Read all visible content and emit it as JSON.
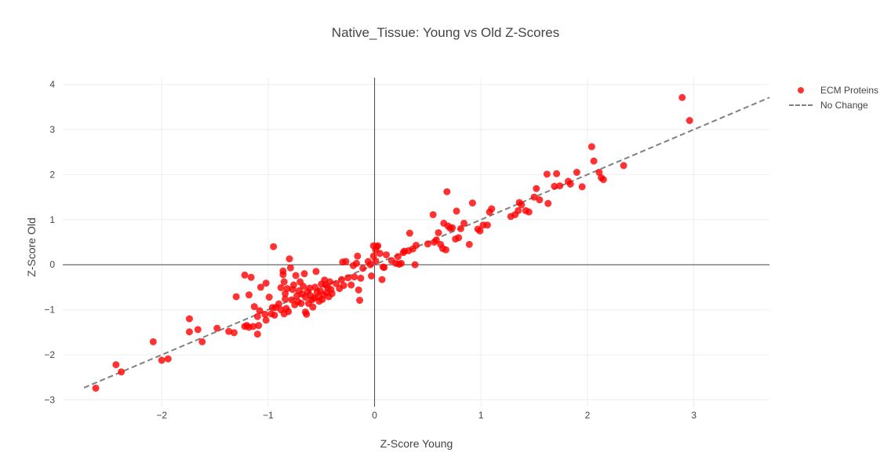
{
  "chart_data": {
    "type": "scatter",
    "title": "Native_Tissue: Young vs Old Z-Scores",
    "xlabel": "Z-Score Young",
    "ylabel": "Z-Score Old",
    "xlim": [
      -2.93,
      3.71
    ],
    "ylim": [
      -3.15,
      4.15
    ],
    "xticks": [
      -2,
      -1,
      0,
      1,
      2,
      3
    ],
    "yticks": [
      -3,
      -2,
      -1,
      0,
      1,
      2,
      3,
      4
    ],
    "xtick_labels": [
      "−2",
      "−1",
      "0",
      "1",
      "2",
      "3"
    ],
    "ytick_labels": [
      "−3",
      "−2",
      "−1",
      "0",
      "1",
      "2",
      "3",
      "4"
    ],
    "grid": true,
    "legend_position": "top-right",
    "series": [
      {
        "name": "ECM Proteins",
        "type": "scatter",
        "color": "#ff0000",
        "points": [
          [
            -2.62,
            -2.74
          ],
          [
            -2.43,
            -2.22
          ],
          [
            -2.38,
            -2.38
          ],
          [
            -2.08,
            -1.71
          ],
          [
            -2.0,
            -2.12
          ],
          [
            -1.94,
            -2.09
          ],
          [
            -1.74,
            -1.2
          ],
          [
            -1.74,
            -1.49
          ],
          [
            -1.66,
            -1.44
          ],
          [
            -1.62,
            -1.71
          ],
          [
            -1.48,
            -1.41
          ],
          [
            -1.37,
            -1.48
          ],
          [
            -1.32,
            -1.51
          ],
          [
            -1.3,
            -0.71
          ],
          [
            -1.22,
            -1.37
          ],
          [
            -1.22,
            -0.23
          ],
          [
            -1.2,
            -1.35
          ],
          [
            -1.18,
            -1.39
          ],
          [
            -1.18,
            -0.67
          ],
          [
            -1.16,
            -0.28
          ],
          [
            -1.14,
            -1.37
          ],
          [
            -1.13,
            -0.93
          ],
          [
            -1.1,
            -1.54
          ],
          [
            -1.1,
            -1.15
          ],
          [
            -1.09,
            -1.35
          ],
          [
            -1.08,
            -1.02
          ],
          [
            -1.07,
            -0.5
          ],
          [
            -1.03,
            -1.1
          ],
          [
            -1.02,
            -0.41
          ],
          [
            -1.02,
            -1.23
          ],
          [
            -0.99,
            -0.72
          ],
          [
            -0.97,
            -1.09
          ],
          [
            -0.96,
            -0.95
          ],
          [
            -0.95,
            0.4
          ],
          [
            -0.94,
            -1.12
          ],
          [
            -0.93,
            -0.95
          ],
          [
            -0.9,
            -0.87
          ],
          [
            -0.88,
            -0.51
          ],
          [
            -0.88,
            -1.0
          ],
          [
            -0.86,
            -0.14
          ],
          [
            -0.86,
            -0.22
          ],
          [
            -0.85,
            -0.38
          ],
          [
            -0.85,
            -1.09
          ],
          [
            -0.84,
            -0.64
          ],
          [
            -0.84,
            -0.76
          ],
          [
            -0.83,
            -0.97
          ],
          [
            -0.82,
            -0.53
          ],
          [
            -0.81,
            -1.04
          ],
          [
            -0.8,
            0.13
          ],
          [
            -0.79,
            -0.07
          ],
          [
            -0.78,
            -0.78
          ],
          [
            -0.77,
            -0.55
          ],
          [
            -0.76,
            -0.45
          ],
          [
            -0.75,
            -0.89
          ],
          [
            -0.74,
            -0.24
          ],
          [
            -0.73,
            -0.69
          ],
          [
            -0.72,
            -0.82
          ],
          [
            -0.71,
            -0.58
          ],
          [
            -0.7,
            -0.38
          ],
          [
            -0.69,
            -0.86
          ],
          [
            -0.68,
            -0.65
          ],
          [
            -0.67,
            -0.48
          ],
          [
            -0.66,
            -0.2
          ],
          [
            -0.65,
            -0.72
          ],
          [
            -0.65,
            -1.05
          ],
          [
            -0.64,
            -1.1
          ],
          [
            -0.63,
            -0.6
          ],
          [
            -0.62,
            -0.86
          ],
          [
            -0.61,
            -0.52
          ],
          [
            -0.6,
            -0.69
          ],
          [
            -0.59,
            -0.78
          ],
          [
            -0.58,
            -0.94
          ],
          [
            -0.57,
            -0.74
          ],
          [
            -0.56,
            -0.5
          ],
          [
            -0.55,
            -0.15
          ],
          [
            -0.54,
            -0.61
          ],
          [
            -0.53,
            -0.72
          ],
          [
            -0.52,
            -0.81
          ],
          [
            -0.51,
            -0.58
          ],
          [
            -0.5,
            -0.43
          ],
          [
            -0.49,
            -0.77
          ],
          [
            -0.48,
            -0.67
          ],
          [
            -0.47,
            -0.34
          ],
          [
            -0.46,
            -0.45
          ],
          [
            -0.45,
            -0.62
          ],
          [
            -0.44,
            -0.51
          ],
          [
            -0.43,
            -0.71
          ],
          [
            -0.42,
            -0.38
          ],
          [
            -0.41,
            -0.55
          ],
          [
            -0.4,
            -0.64
          ],
          [
            -0.36,
            -0.42
          ],
          [
            -0.33,
            -0.53
          ],
          [
            -0.31,
            -0.33
          ],
          [
            -0.3,
            0.06
          ],
          [
            -0.29,
            -0.46
          ],
          [
            -0.27,
            0.07
          ],
          [
            -0.25,
            -0.29
          ],
          [
            -0.22,
            -0.45
          ],
          [
            -0.2,
            -0.02
          ],
          [
            -0.19,
            -0.27
          ],
          [
            -0.17,
            0.03
          ],
          [
            -0.16,
            0.19
          ],
          [
            -0.15,
            -0.56
          ],
          [
            -0.14,
            -0.79
          ],
          [
            -0.13,
            -0.3
          ],
          [
            -0.11,
            -0.08
          ],
          [
            -0.06,
            0.07
          ],
          [
            -0.04,
            0.0
          ],
          [
            -0.03,
            -0.25
          ],
          [
            -0.01,
            0.19
          ],
          [
            -0.01,
            0.42
          ],
          [
            0.01,
            0.33
          ],
          [
            0.01,
            0.08
          ],
          [
            0.02,
            0.4
          ],
          [
            0.03,
            0.42
          ],
          [
            0.05,
            0.25
          ],
          [
            0.07,
            -0.33
          ],
          [
            0.08,
            -0.05
          ],
          [
            0.09,
            -0.06
          ],
          [
            0.11,
            0.22
          ],
          [
            0.16,
            0.09
          ],
          [
            0.2,
            0.03
          ],
          [
            0.22,
            0.18
          ],
          [
            0.23,
            0.01
          ],
          [
            0.25,
            0.03
          ],
          [
            0.27,
            0.27
          ],
          [
            0.28,
            0.3
          ],
          [
            0.32,
            0.31
          ],
          [
            0.33,
            0.7
          ],
          [
            0.36,
            0.35
          ],
          [
            0.38,
            0.0
          ],
          [
            0.39,
            0.43
          ],
          [
            0.5,
            0.46
          ],
          [
            0.55,
            1.11
          ],
          [
            0.56,
            0.5
          ],
          [
            0.58,
            0.55
          ],
          [
            0.6,
            0.71
          ],
          [
            0.62,
            0.45
          ],
          [
            0.64,
            0.36
          ],
          [
            0.65,
            0.92
          ],
          [
            0.67,
            0.33
          ],
          [
            0.68,
            1.62
          ],
          [
            0.69,
            0.86
          ],
          [
            0.71,
            0.81
          ],
          [
            0.73,
            0.82
          ],
          [
            0.76,
            0.57
          ],
          [
            0.77,
            1.19
          ],
          [
            0.79,
            0.6
          ],
          [
            0.81,
            0.8
          ],
          [
            0.84,
            0.92
          ],
          [
            0.89,
            0.45
          ],
          [
            0.92,
            1.37
          ],
          [
            0.97,
            0.79
          ],
          [
            0.99,
            0.75
          ],
          [
            1.02,
            0.88
          ],
          [
            1.06,
            0.88
          ],
          [
            1.08,
            1.17
          ],
          [
            1.1,
            1.24
          ],
          [
            1.28,
            1.07
          ],
          [
            1.32,
            1.11
          ],
          [
            1.35,
            1.2
          ],
          [
            1.36,
            1.38
          ],
          [
            1.38,
            1.33
          ],
          [
            1.42,
            1.2
          ],
          [
            1.45,
            1.17
          ],
          [
            1.5,
            1.5
          ],
          [
            1.52,
            1.69
          ],
          [
            1.55,
            1.44
          ],
          [
            1.62,
            2.01
          ],
          [
            1.63,
            1.36
          ],
          [
            1.69,
            1.74
          ],
          [
            1.71,
            2.02
          ],
          [
            1.74,
            1.75
          ],
          [
            1.82,
            1.85
          ],
          [
            1.84,
            1.79
          ],
          [
            1.9,
            2.05
          ],
          [
            1.95,
            1.73
          ],
          [
            2.04,
            2.62
          ],
          [
            2.06,
            2.3
          ],
          [
            2.11,
            2.05
          ],
          [
            2.13,
            1.93
          ],
          [
            2.15,
            1.89
          ],
          [
            2.34,
            2.2
          ],
          [
            2.89,
            3.71
          ],
          [
            2.96,
            3.2
          ]
        ]
      },
      {
        "name": "No Change",
        "type": "line",
        "style": "dashed",
        "color": "#808080",
        "points": [
          [
            -2.73,
            -2.73
          ],
          [
            3.71,
            3.71
          ]
        ]
      }
    ]
  }
}
